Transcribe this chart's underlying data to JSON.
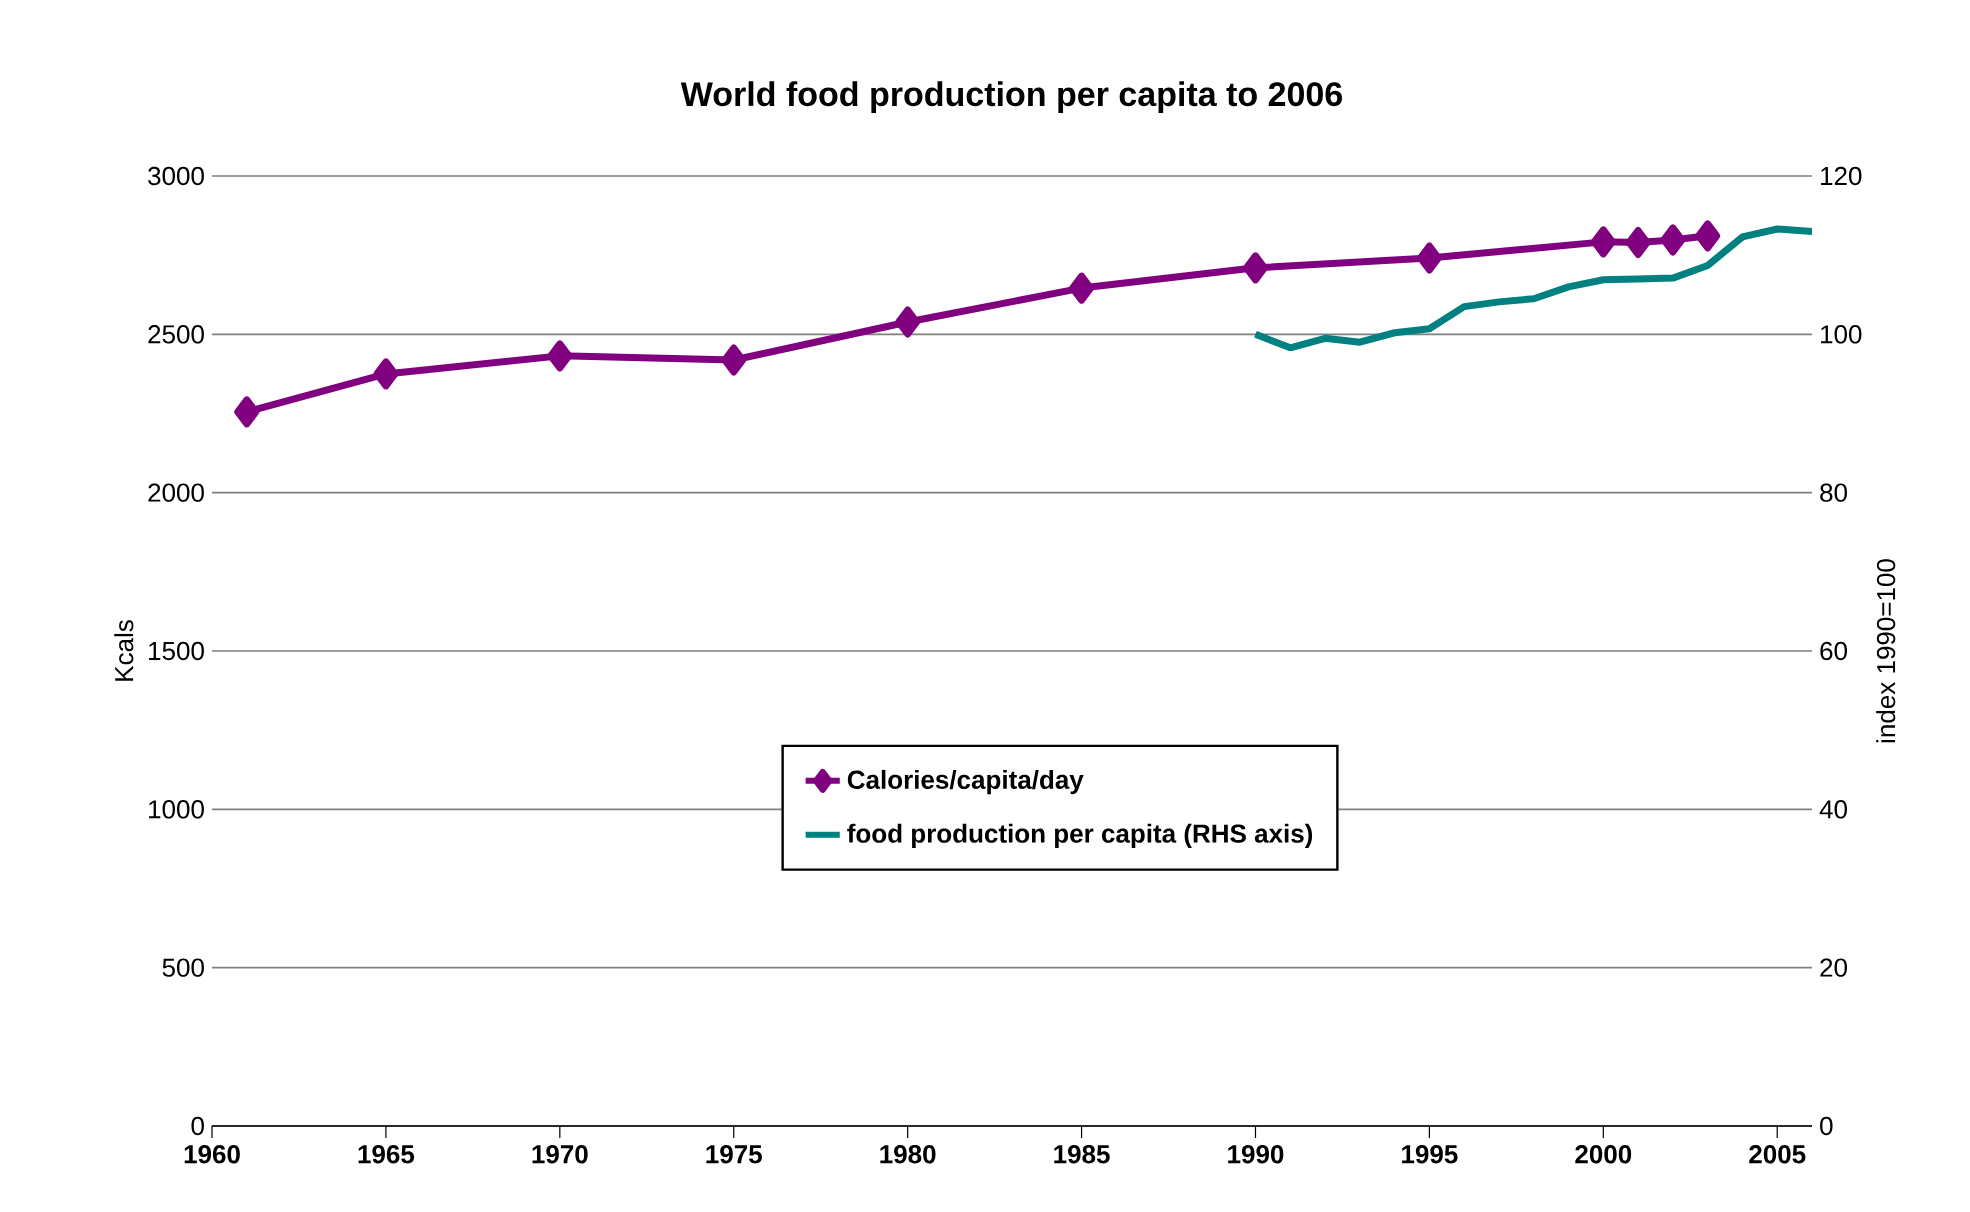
{
  "chart_data": {
    "type": "line",
    "title": "World food production per capita to 2006",
    "ylabel": "Kcals",
    "y2label": "index 1990=100",
    "xlim": [
      1960,
      2006
    ],
    "xticks": [
      1960,
      1965,
      1970,
      1975,
      1980,
      1985,
      1990,
      1995,
      2000,
      2005
    ],
    "ylim": [
      0,
      3000
    ],
    "yticks": [
      0,
      500,
      1000,
      1500,
      2000,
      2500,
      3000
    ],
    "y2lim": [
      0,
      120
    ],
    "y2ticks": [
      0,
      20,
      40,
      60,
      80,
      100,
      120
    ],
    "grid": "y",
    "legend": "center",
    "series": [
      {
        "name": "Calories/capita/day",
        "color": "#800080",
        "marker": "diamond",
        "x": [
          1961,
          1965,
          1970,
          1975,
          1980,
          1985,
          1990,
          1995,
          2000,
          2001,
          2002,
          2003
        ],
        "values": [
          2255,
          2375,
          2432,
          2419,
          2539,
          2646,
          2710,
          2741,
          2792,
          2790,
          2798,
          2811
        ]
      },
      {
        "name": "food production per capita (RHS axis)",
        "color": "#008080",
        "marker": "none",
        "axis": "y2",
        "x": [
          1990,
          1991,
          1992,
          1993,
          1994,
          1995,
          1996,
          1997,
          1998,
          1999,
          2000,
          2001,
          2002,
          2003,
          2004,
          2005,
          2006
        ],
        "values": [
          100,
          98.3,
          99.5,
          99,
          100.2,
          100.7,
          103.5,
          104.1,
          104.5,
          106,
          106.9,
          107,
          107.1,
          108.7,
          112.3,
          113.3,
          113
        ]
      }
    ]
  }
}
